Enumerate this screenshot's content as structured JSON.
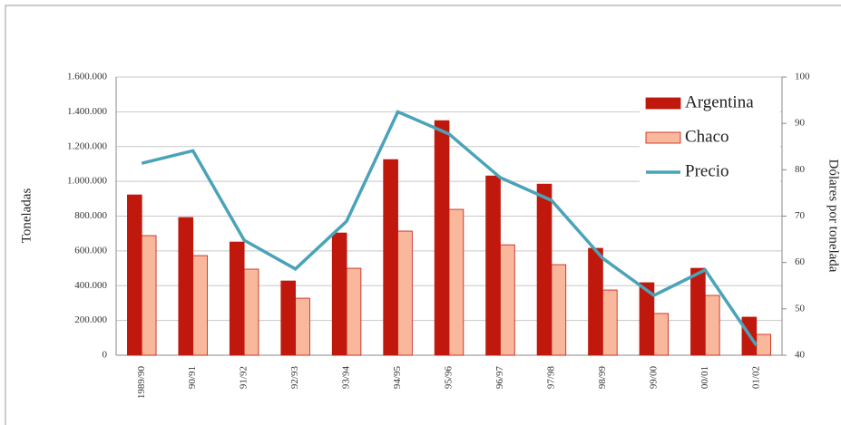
{
  "chart_data": {
    "type": "bar_line",
    "y_label": "Toneladas",
    "y2_label": "Dólares por tonelada",
    "categories": [
      "1989/90",
      "90/91",
      "91/92",
      "92/93",
      "93/94",
      "94/95",
      "95/96",
      "96/97",
      "97/98",
      "98/99",
      "99/00",
      "00/01",
      "01/02"
    ],
    "series": [
      {
        "name": "Argentina",
        "type": "bar",
        "color": "#c0180c",
        "values": [
          922000,
          792000,
          651000,
          427000,
          703000,
          1125000,
          1349000,
          1031000,
          984000,
          615000,
          417000,
          500000,
          219000
        ]
      },
      {
        "name": "Chaco",
        "type": "bar",
        "color": "#f9b89b",
        "values": [
          688000,
          573000,
          495000,
          328000,
          500000,
          714000,
          839000,
          635000,
          521000,
          375000,
          240000,
          344000,
          120000
        ]
      },
      {
        "name": "Precio",
        "type": "line",
        "axis": "y2",
        "color": "#4aa3b8",
        "values": [
          81.4,
          84.1,
          64.8,
          58.6,
          68.9,
          92.5,
          87.7,
          78.3,
          73.4,
          60.9,
          52.9,
          58.4,
          42.1
        ]
      }
    ],
    "ylim": [
      0,
      1600000
    ],
    "yticks": [
      0,
      {
        "value": 200000,
        "label": "200.000"
      },
      {
        "value": 400000,
        "label": "400.000"
      },
      {
        "value": 600000,
        "label": "600.000"
      },
      {
        "value": 800000,
        "label": "800.000"
      },
      {
        "value": 1000000,
        "label": "1.000.000"
      },
      {
        "value": 1200000,
        "label": "1.200.000"
      },
      {
        "value": 1400000,
        "label": "1.400.000"
      },
      {
        "value": 1600000,
        "label": "1.600.000"
      }
    ],
    "y2lim": [
      40,
      100
    ],
    "y2ticks": [
      40,
      50,
      60,
      70,
      80,
      90,
      100
    ],
    "grid": true,
    "legend": "top-right"
  }
}
